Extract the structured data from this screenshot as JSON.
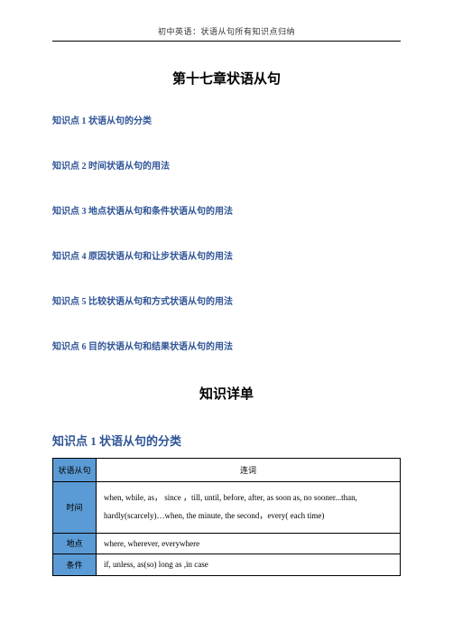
{
  "header": {
    "text": "初中英语：状语从句所有知识点归纳"
  },
  "chapter": {
    "title": "第十七章状语从句"
  },
  "toc": {
    "items": [
      "知识点 1 状语从句的分类",
      "知识点 2 时间状语从句的用法",
      "知识点 3 地点状语从句和条件状语从句的用法",
      "知识点 4 原因状语从句和让步状语从句的用法",
      "知识点 5 比较状语从句和方式状语从句的用法",
      "知识点 6 目的状语从句和结果状语从句的用法"
    ]
  },
  "section": {
    "title": "知识详单"
  },
  "kp1": {
    "heading": "知识点 1 状语从句的分类",
    "table": {
      "header_left": "状语从句",
      "header_right": "连词",
      "rows": [
        {
          "label": "时间",
          "content": "when, while, as， since ，till, until, before, after, as soon as, no sooner...than, hardly(scarcely)…when, the\nminute, the second，every( each time)"
        },
        {
          "label": "地点",
          "content": "where, wherever, everywhere"
        },
        {
          "label": "条件",
          "content": "if, unless, as(so) long as ,in case"
        }
      ]
    }
  },
  "colors": {
    "link_blue": "#2e5496",
    "table_header_bg": "#5b9bd5",
    "border": "#000000",
    "bg": "#ffffff"
  }
}
